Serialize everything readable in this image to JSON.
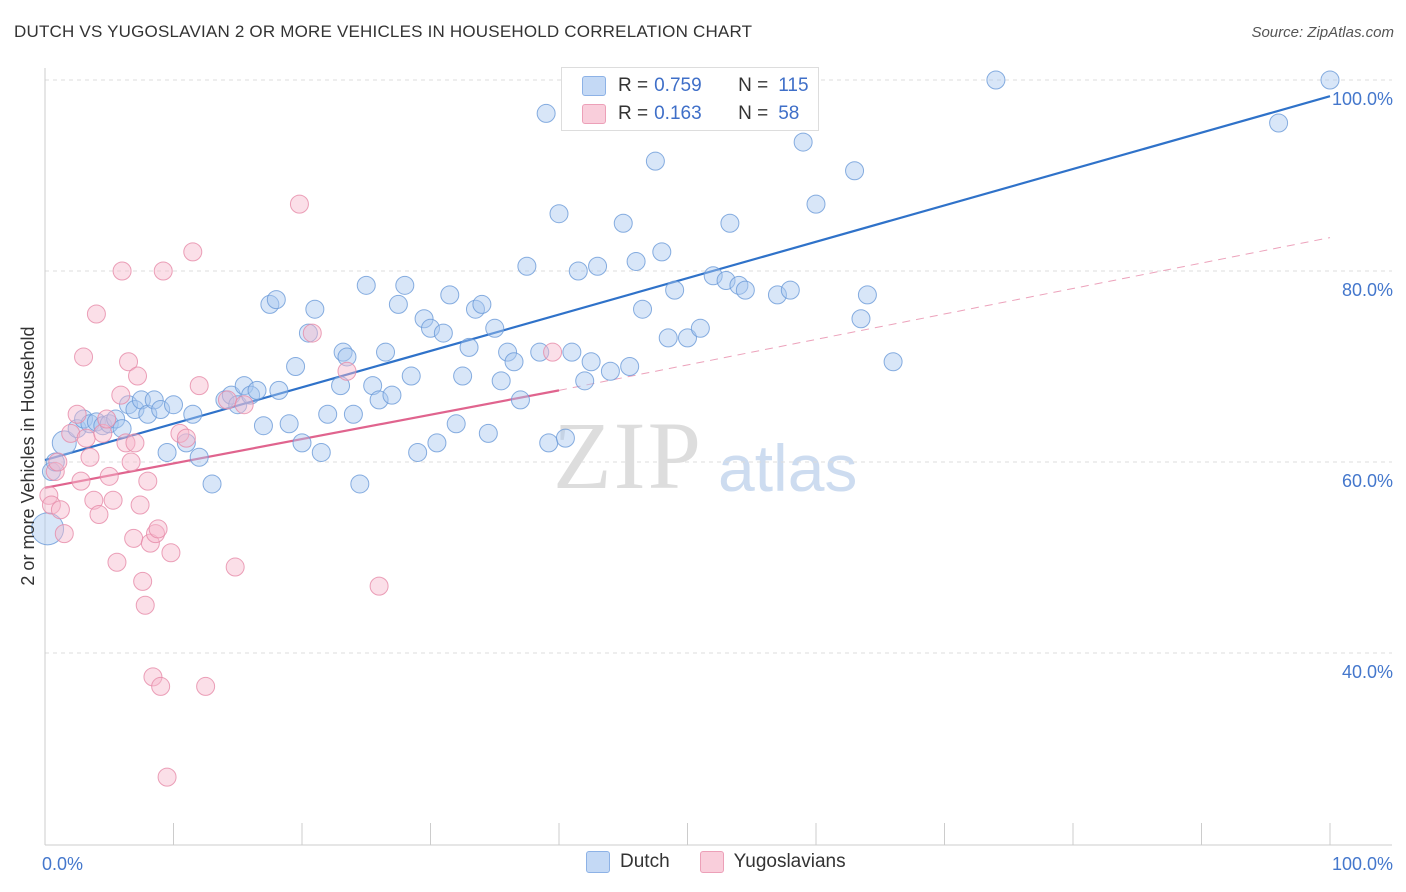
{
  "title": "DUTCH VS YUGOSLAVIAN 2 OR MORE VEHICLES IN HOUSEHOLD CORRELATION CHART",
  "source": "Source: ZipAtlas.com",
  "watermark": {
    "zip": "ZIP",
    "atlas": "atlas"
  },
  "legend": {
    "rows": [
      {
        "r_label": "R =",
        "r_value": "0.759",
        "n_label": "N =",
        "n_value": "115",
        "color": "#a8c8f0"
      },
      {
        "r_label": "R =",
        "r_value": "0.163",
        "n_label": "N =",
        "n_value": "58",
        "color": "#f6b8cc"
      }
    ]
  },
  "bottom_legend": [
    {
      "label": "Dutch",
      "color": "#a8c8f0"
    },
    {
      "label": "Yugoslavians",
      "color": "#f6b8cc"
    }
  ],
  "chart_data": {
    "type": "scatter",
    "title": "DUTCH VS YUGOSLAVIAN 2 OR MORE VEHICLES IN HOUSEHOLD CORRELATION CHART",
    "xlabel": "",
    "ylabel": "2 or more Vehicles in Household",
    "xlim": [
      0,
      100
    ],
    "ylim": [
      20,
      103
    ],
    "x_tick_labels": [
      "0.0%",
      "100.0%"
    ],
    "y_ticks": [
      40,
      60,
      80,
      100
    ],
    "y_tick_labels": [
      "40.0%",
      "60.0%",
      "80.0%",
      "100.0%"
    ],
    "grid": true,
    "series": [
      {
        "name": "Dutch",
        "color": "#a8c8f0",
        "stroke": "#6a9ad8",
        "trend": {
          "x0": 0,
          "y0": 60.2,
          "x1": 100,
          "y1": 98.3,
          "color": "#2f72c9"
        },
        "points": [
          [
            0.2,
            53
          ],
          [
            0.5,
            59
          ],
          [
            0.8,
            60
          ],
          [
            1.5,
            62
          ],
          [
            2.5,
            63.5
          ],
          [
            3,
            64.5
          ],
          [
            3.5,
            64
          ],
          [
            4,
            64.2
          ],
          [
            4.5,
            63.8
          ],
          [
            5,
            64
          ],
          [
            5.5,
            64.5
          ],
          [
            6,
            63.5
          ],
          [
            6.5,
            66
          ],
          [
            7,
            65.5
          ],
          [
            7.5,
            66.5
          ],
          [
            8,
            65
          ],
          [
            8.5,
            66.5
          ],
          [
            9,
            65.5
          ],
          [
            9.5,
            61
          ],
          [
            10,
            66
          ],
          [
            11,
            62
          ],
          [
            11.5,
            65
          ],
          [
            12,
            60.5
          ],
          [
            13,
            57.7
          ],
          [
            14,
            66.5
          ],
          [
            14.5,
            67
          ],
          [
            15,
            66
          ],
          [
            15.5,
            68
          ],
          [
            16,
            67
          ],
          [
            16.5,
            67.5
          ],
          [
            17,
            63.8
          ],
          [
            17.5,
            76.5
          ],
          [
            18,
            77
          ],
          [
            18.2,
            67.5
          ],
          [
            19,
            64
          ],
          [
            19.5,
            70
          ],
          [
            20,
            62
          ],
          [
            20.5,
            73.5
          ],
          [
            21,
            76
          ],
          [
            21.5,
            61
          ],
          [
            22,
            65
          ],
          [
            23,
            68
          ],
          [
            23.2,
            71.5
          ],
          [
            23.5,
            71
          ],
          [
            24,
            65
          ],
          [
            24.5,
            57.7
          ],
          [
            25,
            78.5
          ],
          [
            25.5,
            68
          ],
          [
            26,
            66.5
          ],
          [
            26.5,
            71.5
          ],
          [
            27,
            67
          ],
          [
            27.5,
            76.5
          ],
          [
            28,
            78.5
          ],
          [
            28.5,
            69
          ],
          [
            29,
            61
          ],
          [
            29.5,
            75
          ],
          [
            30,
            74
          ],
          [
            30.5,
            62
          ],
          [
            31,
            73.5
          ],
          [
            31.5,
            77.5
          ],
          [
            32,
            64
          ],
          [
            32.5,
            69
          ],
          [
            33,
            72
          ],
          [
            33.5,
            76
          ],
          [
            34,
            76.5
          ],
          [
            34.5,
            63
          ],
          [
            35,
            74
          ],
          [
            35.5,
            68.5
          ],
          [
            36,
            71.5
          ],
          [
            36.5,
            70.5
          ],
          [
            37,
            66.5
          ],
          [
            37.5,
            80.5
          ],
          [
            38.5,
            71.5
          ],
          [
            39,
            96.5
          ],
          [
            39.2,
            62
          ],
          [
            40,
            86
          ],
          [
            40.5,
            62.5
          ],
          [
            41,
            71.5
          ],
          [
            41.5,
            80
          ],
          [
            42,
            68.5
          ],
          [
            42.5,
            70.5
          ],
          [
            43,
            80.5
          ],
          [
            44,
            69.5
          ],
          [
            45,
            85
          ],
          [
            45.5,
            70
          ],
          [
            46,
            81
          ],
          [
            46.5,
            76
          ],
          [
            47.5,
            91.5
          ],
          [
            48,
            82
          ],
          [
            48.5,
            73
          ],
          [
            49,
            78
          ],
          [
            50,
            73
          ],
          [
            51,
            74
          ],
          [
            52,
            79.5
          ],
          [
            53,
            79
          ],
          [
            53.3,
            85
          ],
          [
            54,
            78.5
          ],
          [
            54.5,
            78
          ],
          [
            55,
            100
          ],
          [
            57,
            77.5
          ],
          [
            58,
            78
          ],
          [
            59,
            93.5
          ],
          [
            60,
            87
          ],
          [
            63,
            90.5
          ],
          [
            63.5,
            75
          ],
          [
            64,
            77.5
          ],
          [
            66,
            70.5
          ],
          [
            74,
            100
          ],
          [
            96,
            95.5
          ],
          [
            100,
            100
          ]
        ]
      },
      {
        "name": "Yugoslavians",
        "color": "#f6b8cc",
        "stroke": "#e68aa8",
        "trend": {
          "x0": 0,
          "y0": 57.3,
          "x1": 40,
          "y1": 67.5,
          "color": "#e0648e",
          "dash_to": {
            "x": 100,
            "y": 83.5
          }
        },
        "points": [
          [
            0.3,
            56.5
          ],
          [
            0.5,
            55.5
          ],
          [
            0.8,
            59
          ],
          [
            1,
            60
          ],
          [
            1.2,
            55
          ],
          [
            1.5,
            52.5
          ],
          [
            2,
            63
          ],
          [
            2.5,
            65
          ],
          [
            2.8,
            58
          ],
          [
            3,
            71
          ],
          [
            3.2,
            62.5
          ],
          [
            3.5,
            60.5
          ],
          [
            3.8,
            56
          ],
          [
            4,
            75.5
          ],
          [
            4.2,
            54.5
          ],
          [
            4.5,
            63
          ],
          [
            4.8,
            64.5
          ],
          [
            5,
            58.5
          ],
          [
            5.3,
            56
          ],
          [
            5.6,
            49.5
          ],
          [
            5.9,
            67
          ],
          [
            6,
            80
          ],
          [
            6.3,
            62
          ],
          [
            6.5,
            70.5
          ],
          [
            6.7,
            60
          ],
          [
            6.9,
            52
          ],
          [
            7,
            62
          ],
          [
            7.2,
            69
          ],
          [
            7.4,
            55.5
          ],
          [
            7.6,
            47.5
          ],
          [
            7.8,
            45
          ],
          [
            8,
            58
          ],
          [
            8.2,
            51.5
          ],
          [
            8.4,
            37.5
          ],
          [
            8.6,
            52.5
          ],
          [
            8.8,
            53
          ],
          [
            9,
            36.5
          ],
          [
            9.2,
            80
          ],
          [
            9.5,
            27
          ],
          [
            9.8,
            50.5
          ],
          [
            10.5,
            63
          ],
          [
            11,
            62.5
          ],
          [
            11.5,
            82
          ],
          [
            12,
            68
          ],
          [
            12.5,
            36.5
          ],
          [
            14.2,
            66.5
          ],
          [
            14.8,
            49
          ],
          [
            15.5,
            66
          ],
          [
            19.8,
            87
          ],
          [
            20.8,
            73.5
          ],
          [
            23.5,
            69.5
          ],
          [
            26,
            47
          ],
          [
            39.5,
            71.5
          ]
        ]
      }
    ]
  }
}
